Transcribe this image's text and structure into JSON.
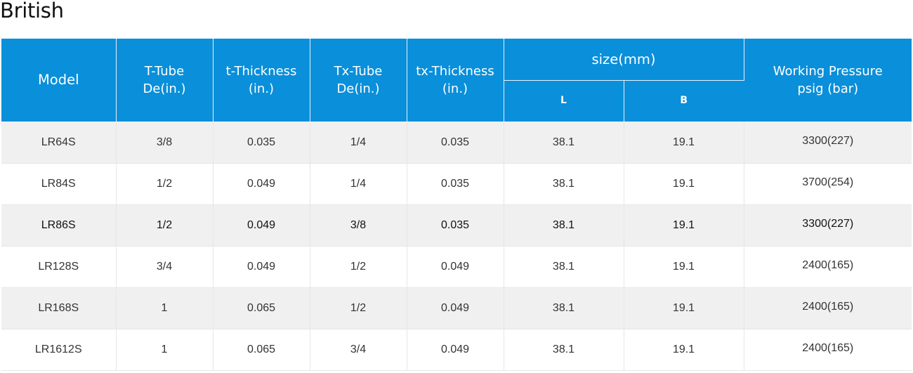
{
  "title": "British",
  "table": {
    "headers": {
      "model": "Model",
      "t_tube": [
        "T-Tube",
        "De(in.)"
      ],
      "t_thickness": [
        "t-Thickness",
        "(in.)"
      ],
      "tx_tube": [
        "Tx-Tube",
        "De(in.)"
      ],
      "tx_thickness": [
        "tx-Thickness",
        "(in.)"
      ],
      "size": "size(mm)",
      "size_l": "L",
      "size_b": "B",
      "pressure": [
        "Working Pressure",
        "psig (bar)"
      ]
    },
    "rows": [
      {
        "model": "LR64S",
        "t_tube": "3/8",
        "t_thickness": "0.035",
        "tx_tube": "1/4",
        "tx_thickness": "0.035",
        "l": "38.1",
        "b": "19.1",
        "pressure": "3300(227)"
      },
      {
        "model": "LR84S",
        "t_tube": "1/2",
        "t_thickness": "0.049",
        "tx_tube": "1/4",
        "tx_thickness": "0.035",
        "l": "38.1",
        "b": "19.1",
        "pressure": "3700(254)"
      },
      {
        "model": "LR86S",
        "t_tube": "1/2",
        "t_thickness": "0.049",
        "tx_tube": "3/8",
        "tx_thickness": "0.035",
        "l": "38.1",
        "b": "19.1",
        "pressure": "3300(227)"
      },
      {
        "model": "LR128S",
        "t_tube": "3/4",
        "t_thickness": "0.049",
        "tx_tube": "1/2",
        "tx_thickness": "0.049",
        "l": "38.1",
        "b": "19.1",
        "pressure": "2400(165)"
      },
      {
        "model": "LR168S",
        "t_tube": "1",
        "t_thickness": "0.065",
        "tx_tube": "1/2",
        "tx_thickness": "0.049",
        "l": "38.1",
        "b": "19.1",
        "pressure": "2400(165)"
      },
      {
        "model": "LR1612S",
        "t_tube": "1",
        "t_thickness": "0.065",
        "tx_tube": "3/4",
        "tx_thickness": "0.049",
        "l": "38.1",
        "b": "19.1",
        "pressure": "2400(165)"
      }
    ]
  },
  "colors": {
    "header_bg": "#0a8fda",
    "header_text": "#ffffff",
    "row_alt_bg": "#f0f0f0",
    "border": "#e6e6e6"
  }
}
